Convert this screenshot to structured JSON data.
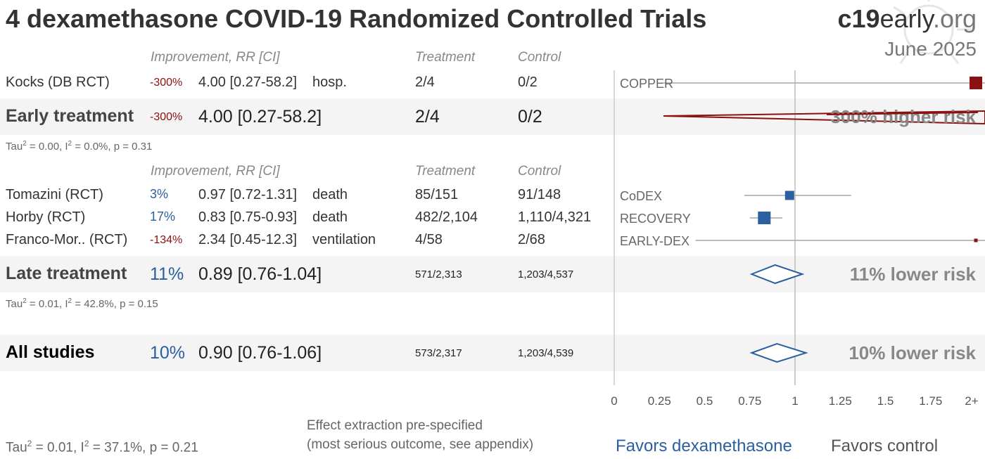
{
  "title": "4 dexamethasone COVID-19 Randomized Controlled Trials",
  "brand": {
    "bold": "c19",
    "mid": "early",
    "light": ".org"
  },
  "date": "June 2025",
  "headers": {
    "improvement": "Improvement, RR [CI]",
    "treatment": "Treatment",
    "control": "Control"
  },
  "early": {
    "studies": [
      {
        "name": "Kocks (DB RCT)",
        "improvement": "-300%",
        "rr": "4.00 [0.27-58.2]",
        "outcome": "hosp.",
        "treatment": "2/4",
        "control": "0/2",
        "label": "COPPER"
      }
    ],
    "summary": {
      "name": "Early treatment",
      "improvement": "-300%",
      "rr": "4.00 [0.27-58.2]",
      "treatment": "2/4",
      "control": "0/2",
      "risk": "300% higher risk"
    },
    "tau_label": "Tau",
    "tau_value": " = 0.00, I",
    "i2": " = 0.0%, p = 0.31"
  },
  "late": {
    "studies": [
      {
        "name": "Tomazini (RCT)",
        "improvement": "3%",
        "rr": "0.97 [0.72-1.31]",
        "outcome": "death",
        "treatment": "85/151",
        "control": "91/148",
        "label": "CoDEX"
      },
      {
        "name": "Horby (RCT)",
        "improvement": "17%",
        "rr": "0.83 [0.75-0.93]",
        "outcome": "death",
        "treatment": "482/2,104",
        "control": "1,110/4,321",
        "label": "RECOVERY"
      },
      {
        "name": "Franco-Mor.. (RCT)",
        "improvement": "-134%",
        "rr": "2.34 [0.45-12.3]",
        "outcome": "ventilation",
        "treatment": "4/58",
        "control": "2/68",
        "label": "EARLY-DEX"
      }
    ],
    "summary": {
      "name": "Late treatment",
      "improvement": "11%",
      "rr": "0.89 [0.76-1.04]",
      "treatment": "571/2,313",
      "control": "1,203/4,537",
      "risk": "11% lower risk"
    },
    "tau_label": "Tau",
    "tau_value": " = 0.01, I",
    "i2": " = 42.8%, p = 0.15"
  },
  "all": {
    "summary": {
      "name": "All studies",
      "improvement": "10%",
      "rr": "0.90 [0.76-1.06]",
      "treatment": "573/2,317",
      "control": "1,203/4,539",
      "risk": "10% lower risk"
    }
  },
  "footer": {
    "tau_label": "Tau",
    "tau_value": " = 0.01, I",
    "i2": " = 37.1%, p = 0.21",
    "note1": "Effect extraction pre-specified",
    "note2": "(most serious outcome, see appendix)",
    "favors_left": "Favors dexamethasone",
    "favors_right": "Favors control",
    "sup2": "2"
  },
  "chart_data": {
    "type": "forest",
    "xlim": [
      0,
      2
    ],
    "xticks": [
      "0",
      "0.25",
      "0.5",
      "0.75",
      "1",
      "1.25",
      "1.5",
      "1.75",
      "2+"
    ],
    "reference": 1,
    "studies": [
      {
        "label": "COPPER",
        "rr": 4.0,
        "lo": 0.27,
        "hi": 58.2,
        "group": "early",
        "color": "#8b1010"
      },
      {
        "label": "CoDEX",
        "rr": 0.97,
        "lo": 0.72,
        "hi": 1.31,
        "group": "late",
        "color": "#2a5fa0"
      },
      {
        "label": "RECOVERY",
        "rr": 0.83,
        "lo": 0.75,
        "hi": 0.93,
        "group": "late",
        "color": "#2a5fa0"
      },
      {
        "label": "EARLY-DEX",
        "rr": 2.34,
        "lo": 0.45,
        "hi": 12.3,
        "group": "late",
        "color": "#8b1010"
      }
    ],
    "summaries": [
      {
        "name": "Early treatment",
        "rr": 4.0,
        "lo": 0.27,
        "hi": 58.2,
        "color": "#8b1010"
      },
      {
        "name": "Late treatment",
        "rr": 0.89,
        "lo": 0.76,
        "hi": 1.04,
        "color": "#2a5fa0"
      },
      {
        "name": "All studies",
        "rr": 0.9,
        "lo": 0.76,
        "hi": 1.06,
        "color": "#2a5fa0"
      }
    ]
  }
}
